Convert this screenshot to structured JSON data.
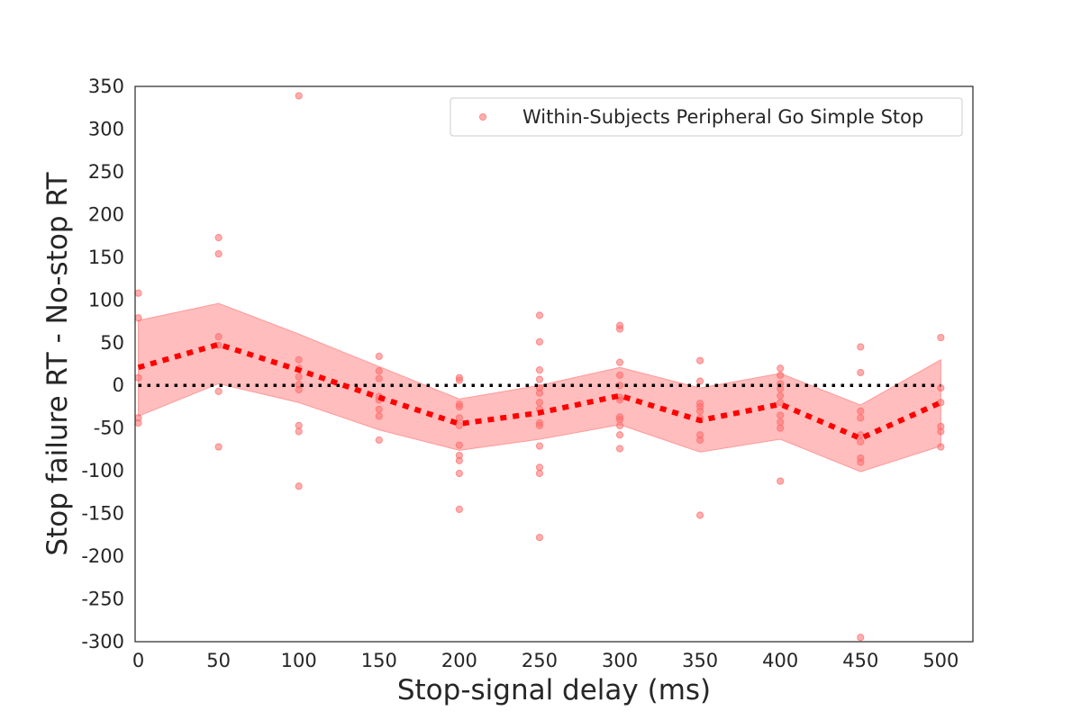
{
  "chart_data": {
    "type": "scatter",
    "title": "",
    "xlabel": "Stop-signal delay (ms)",
    "ylabel": "Stop failure RT - No-stop RT",
    "xlim": [
      -2,
      520
    ],
    "ylim": [
      -300,
      350
    ],
    "xticks": [
      0,
      50,
      100,
      150,
      200,
      250,
      300,
      350,
      400,
      450,
      500
    ],
    "yticks": [
      350,
      300,
      250,
      200,
      150,
      100,
      50,
      0,
      -50,
      -100,
      -150,
      -200,
      -250,
      -300
    ],
    "grid": false,
    "legend": {
      "position": "top-right"
    },
    "series": [
      {
        "name": "Within-Subjects Peripheral Go Simple Stop",
        "kind": "scatter",
        "color": "#ff6b6b",
        "points": [
          [
            0,
            108
          ],
          [
            0,
            79
          ],
          [
            0,
            9
          ],
          [
            0,
            -38
          ],
          [
            0,
            -44
          ],
          [
            50,
            173
          ],
          [
            50,
            154
          ],
          [
            50,
            57
          ],
          [
            50,
            47
          ],
          [
            50,
            -7
          ],
          [
            50,
            -72
          ],
          [
            100,
            339
          ],
          [
            100,
            30
          ],
          [
            100,
            20
          ],
          [
            100,
            10
          ],
          [
            100,
            1
          ],
          [
            100,
            -5
          ],
          [
            100,
            -47
          ],
          [
            100,
            -54
          ],
          [
            100,
            -118
          ],
          [
            150,
            34
          ],
          [
            150,
            17
          ],
          [
            150,
            8
          ],
          [
            150,
            -13
          ],
          [
            150,
            -17
          ],
          [
            150,
            -28
          ],
          [
            150,
            -36
          ],
          [
            150,
            -64
          ],
          [
            200,
            9
          ],
          [
            200,
            6
          ],
          [
            200,
            -22
          ],
          [
            200,
            -25
          ],
          [
            200,
            -38
          ],
          [
            200,
            -47
          ],
          [
            200,
            -70
          ],
          [
            200,
            -82
          ],
          [
            200,
            -88
          ],
          [
            200,
            -103
          ],
          [
            200,
            -145
          ],
          [
            250,
            82
          ],
          [
            250,
            51
          ],
          [
            250,
            18
          ],
          [
            250,
            7
          ],
          [
            250,
            -3
          ],
          [
            250,
            -9
          ],
          [
            250,
            -20
          ],
          [
            250,
            -28
          ],
          [
            250,
            -44
          ],
          [
            250,
            -47
          ],
          [
            250,
            -71
          ],
          [
            250,
            -96
          ],
          [
            250,
            -103
          ],
          [
            250,
            -178
          ],
          [
            300,
            70
          ],
          [
            300,
            66
          ],
          [
            300,
            27
          ],
          [
            300,
            12
          ],
          [
            300,
            0
          ],
          [
            300,
            -14
          ],
          [
            300,
            -17
          ],
          [
            300,
            -37
          ],
          [
            300,
            -40
          ],
          [
            300,
            -47
          ],
          [
            300,
            -58
          ],
          [
            300,
            -74
          ],
          [
            350,
            29
          ],
          [
            350,
            5
          ],
          [
            350,
            -21
          ],
          [
            350,
            -25
          ],
          [
            350,
            -30
          ],
          [
            350,
            -38
          ],
          [
            350,
            -58
          ],
          [
            350,
            -64
          ],
          [
            350,
            -152
          ],
          [
            400,
            20
          ],
          [
            400,
            12
          ],
          [
            400,
            2
          ],
          [
            400,
            -4
          ],
          [
            400,
            -12
          ],
          [
            400,
            -20
          ],
          [
            400,
            -35
          ],
          [
            400,
            -43
          ],
          [
            400,
            -50
          ],
          [
            400,
            -112
          ],
          [
            450,
            45
          ],
          [
            450,
            15
          ],
          [
            450,
            -30
          ],
          [
            450,
            -38
          ],
          [
            450,
            -58
          ],
          [
            450,
            -66
          ],
          [
            450,
            -85
          ],
          [
            450,
            -90
          ],
          [
            450,
            -295
          ],
          [
            500,
            56
          ],
          [
            500,
            -3
          ],
          [
            500,
            -20
          ],
          [
            500,
            -48
          ],
          [
            500,
            -54
          ],
          [
            500,
            -72
          ]
        ]
      },
      {
        "name": "",
        "kind": "mean-line",
        "color": "#ff0000",
        "x": [
          0,
          50,
          100,
          150,
          200,
          250,
          300,
          350,
          400,
          450,
          500
        ],
        "y": [
          21,
          48,
          18,
          -14,
          -45,
          -32,
          -12,
          -41,
          -22,
          -62,
          -20
        ]
      },
      {
        "name": "",
        "kind": "confidence-band",
        "color": "#ff9999",
        "x": [
          0,
          50,
          100,
          150,
          200,
          250,
          300,
          350,
          400,
          450,
          500
        ],
        "upper": [
          76,
          96,
          60,
          22,
          -16,
          0,
          21,
          -3,
          14,
          -23,
          30
        ],
        "lower": [
          -36,
          2,
          -20,
          -52,
          -76,
          -63,
          -46,
          -78,
          -63,
          -101,
          -71
        ]
      },
      {
        "name": "",
        "kind": "reference-line",
        "color": "#000000",
        "x": [
          0,
          500
        ],
        "y": [
          0,
          0
        ]
      }
    ]
  }
}
